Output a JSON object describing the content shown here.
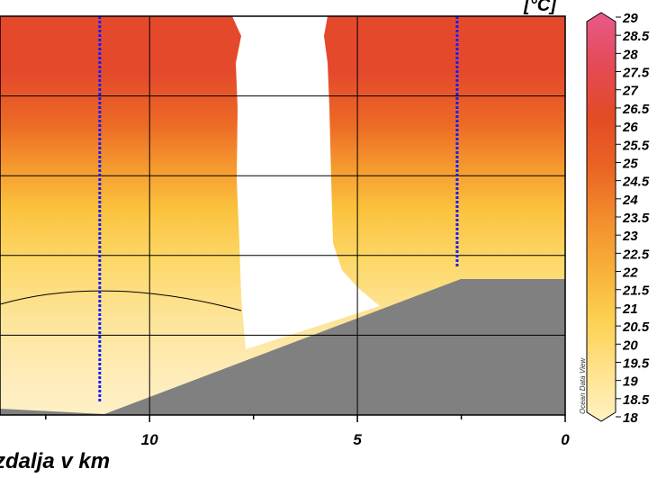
{
  "chart_data": {
    "type": "heatmap",
    "title_fragment": "[°C]",
    "xlabel": "zdalja v km",
    "x_axis": {
      "range": [
        13.6,
        0
      ],
      "ticks": [
        {
          "value": 10,
          "label": "10"
        },
        {
          "value": 5,
          "label": "5"
        },
        {
          "value": 0,
          "label": "0"
        }
      ],
      "minor_ticks": [
        12.5,
        7.5,
        2.5
      ]
    },
    "y_axis": {
      "depth_range": [
        0,
        5
      ],
      "gridlines": [
        1,
        2,
        3,
        4
      ]
    },
    "grid": true,
    "stations": [
      {
        "x": 11.2,
        "bottom_depth": 4.85
      },
      {
        "x": 2.6,
        "bottom_depth": 3.15
      }
    ],
    "bottom_profile": [
      {
        "x": 13.6,
        "depth": 4.75
      },
      {
        "x": 11.2,
        "depth": 4.85
      },
      {
        "x": 2.6,
        "depth": 3.15
      },
      {
        "x": 0,
        "depth": 3.15
      }
    ],
    "no_data_gap": {
      "x_from": 8.0,
      "x_to": 5.7
    },
    "colorbar": {
      "min": 18,
      "max": 29,
      "ticks": [
        "29",
        "28.5",
        "28",
        "27.5",
        "27",
        "26.5",
        "26",
        "25.5",
        "25",
        "24.5",
        "24",
        "23.5",
        "23",
        "22.5",
        "22",
        "21.5",
        "21",
        "20.5",
        "20",
        "19.5",
        "19",
        "18.5",
        "18"
      ],
      "colors": [
        "#fff1c2",
        "#ffe38e",
        "#fdd050",
        "#f7b13a",
        "#f28c2c",
        "#ea6424",
        "#e34a26",
        "#e44a56",
        "#e85a8a"
      ]
    },
    "watermark": "Ocean Data View"
  }
}
